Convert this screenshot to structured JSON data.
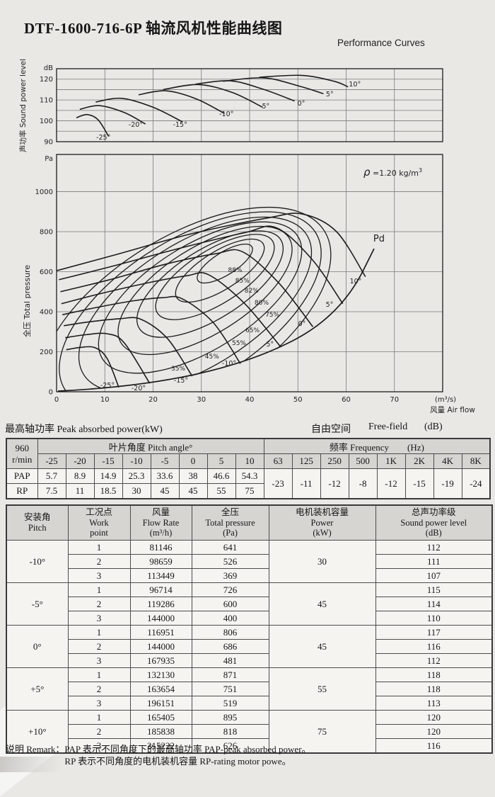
{
  "page": {
    "title": "DTF-1600-716-6P 轴流风机性能曲线图",
    "subtitle": "Performance Curves",
    "paper_color": "#e9e8e5",
    "line_color": "#1c1c1c",
    "grid_color": "#7a7a7a",
    "table_header_color": "#d6d5d1"
  },
  "chart_data": [
    {
      "type": "line",
      "title": "Sound power level curves",
      "ylabel": "声功率 Sound power level",
      "y_unit": "dB",
      "ylim": [
        90,
        125
      ],
      "y_ticks": [
        90,
        100,
        110,
        120
      ],
      "x_range": [
        0,
        80
      ],
      "x_grid_step": 10,
      "grid": "on",
      "series": [
        {
          "name": "-25°",
          "points": [
            [
              4.1,
              101.5
            ],
            [
              6.3,
              103
            ],
            [
              8.6,
              100.5
            ],
            [
              10.8,
              92.5
            ]
          ],
          "label_at": [
            9.7,
            91
          ]
        },
        {
          "name": "-20°",
          "points": [
            [
              4.8,
              105.5
            ],
            [
              8.8,
              107.3
            ],
            [
              14,
              104
            ],
            [
              18.4,
              98.5
            ]
          ],
          "label_at": [
            16.4,
            97.1
          ]
        },
        {
          "name": "-15°",
          "points": [
            [
              8.1,
              109
            ],
            [
              13.5,
              110.8
            ],
            [
              20,
              106.5
            ],
            [
              26.1,
              99.5
            ]
          ],
          "label_at": [
            25.6,
            97.1
          ]
        },
        {
          "name": "-10°",
          "points": [
            [
              17,
              112.5
            ],
            [
              22.7,
              114.4
            ],
            [
              29,
              110.5
            ],
            [
              34.8,
              103.5
            ]
          ],
          "label_at": [
            35.2,
            102.2
          ]
        },
        {
          "name": "-5°",
          "points": [
            [
              22.1,
              115
            ],
            [
              29.5,
              117.4
            ],
            [
              36.5,
              113.5
            ],
            [
              42.7,
              106.5
            ]
          ],
          "label_at": [
            43.1,
            106
          ]
        },
        {
          "name": "0°",
          "points": [
            [
              28.8,
              117.6
            ],
            [
              36,
              119.2
            ],
            [
              43,
              115
            ],
            [
              49.3,
              109.5
            ]
          ],
          "label_at": [
            50.7,
            107.3
          ]
        },
        {
          "name": "5°",
          "points": [
            [
              34.5,
              119
            ],
            [
              43,
              120.6
            ],
            [
              50.5,
              116.5
            ],
            [
              55.3,
              113
            ]
          ],
          "label_at": [
            56.6,
            111.7
          ]
        },
        {
          "name": "10°",
          "points": [
            [
              42,
              120.9
            ],
            [
              50.8,
              121.8
            ],
            [
              57.5,
              119
            ],
            [
              60.4,
              116.3
            ]
          ],
          "label_at": [
            61.8,
            116.5
          ]
        }
      ]
    },
    {
      "type": "line",
      "title": "Total pressure / air flow performance curves",
      "ylabel": "全压 Total pressure",
      "y_unit": "Pa",
      "xlabel": "风量 Air flow",
      "x_unit": "(m³/s)",
      "ylim": [
        0,
        1186
      ],
      "y_ticks": [
        0,
        200,
        400,
        600,
        800,
        1000
      ],
      "x_ticks": [
        0,
        10,
        20,
        30,
        40,
        50,
        60,
        70
      ],
      "grid": "on",
      "density_note": {
        "symbol": "ρ",
        "value": " =1.20 kg/m",
        "sup": "3"
      },
      "pd_curve": {
        "label": "Pd",
        "label_at": [
          66.8,
          750
        ]
      },
      "series": [
        {
          "name": "10°",
          "points": [
            [
              0,
              605
            ],
            [
              13,
              690
            ],
            [
              28,
              790
            ],
            [
              44,
              870
            ],
            [
              51,
              888
            ],
            [
              58,
              800
            ],
            [
              64,
              575
            ]
          ],
          "label_at": [
            61.98,
            541
          ]
        },
        {
          "name": "5°",
          "points": [
            [
              0.5,
              560
            ],
            [
              12,
              630
            ],
            [
              26,
              720
            ],
            [
              39,
              795
            ],
            [
              45.5,
              820
            ],
            [
              53,
              660
            ],
            [
              59.3,
              440
            ]
          ],
          "label_at": [
            56.56,
            425
          ]
        },
        {
          "name": "0°",
          "points": [
            [
              0.8,
              500
            ],
            [
              11,
              560
            ],
            [
              23,
              640
            ],
            [
              33,
              690
            ],
            [
              38.5,
              700
            ],
            [
              46,
              545
            ],
            [
              53.1,
              325
            ]
          ],
          "label_at": [
            50.84,
            329
          ]
        },
        {
          "name": "-5°",
          "points": [
            [
              1,
              440
            ],
            [
              9,
              490
            ],
            [
              19,
              545
            ],
            [
              27,
              580
            ],
            [
              31.5,
              585
            ],
            [
              39,
              440
            ],
            [
              46.4,
              225
            ]
          ],
          "label_at": [
            43.96,
            227
          ]
        },
        {
          "name": "-10°",
          "points": [
            [
              1.2,
              385
            ],
            [
              8,
              420
            ],
            [
              16,
              455
            ],
            [
              22,
              470
            ],
            [
              26,
              465
            ],
            [
              32.5,
              345
            ],
            [
              38.1,
              140
            ]
          ],
          "label_at": [
            35.75,
            131
          ]
        },
        {
          "name": "-15°",
          "points": [
            [
              1.5,
              330
            ],
            [
              7,
              350
            ],
            [
              13,
              365
            ],
            [
              17.5,
              362
            ],
            [
              23,
              265
            ],
            [
              28.1,
              78
            ]
          ],
          "label_at": [
            25.79,
            46
          ]
        },
        {
          "name": "-20°",
          "points": [
            [
              1.8,
              270
            ],
            [
              6,
              285
            ],
            [
              10.5,
              290
            ],
            [
              14,
              245
            ],
            [
              19.3,
              42
            ]
          ],
          "label_at": [
            17,
            7
          ]
        },
        {
          "name": "-25°",
          "points": [
            [
              2,
              210
            ],
            [
              5,
              222
            ],
            [
              8,
              220
            ],
            [
              10.5,
              165
            ],
            [
              12.9,
              22
            ]
          ],
          "label_at": [
            10.55,
            21
          ]
        }
      ],
      "efficiency_contours": {
        "values": [
          "88%",
          "85%",
          "82%",
          "80%",
          "75%",
          "65%",
          "55%",
          "45%",
          "35%"
        ],
        "labels_at": [
          [
            37,
            598
          ],
          [
            38.5,
            545
          ],
          [
            40.4,
            495
          ],
          [
            42.5,
            435
          ],
          [
            44.7,
            375
          ],
          [
            40.6,
            297
          ],
          [
            37.8,
            234
          ],
          [
            32.2,
            166
          ],
          [
            25.2,
            106
          ]
        ]
      }
    }
  ],
  "mid_labels": {
    "left": "最高轴功率 Peak absorbed power(kW)",
    "right_cn": "自由空间",
    "right_en": "Free-field",
    "right_unit": "(dB)"
  },
  "table1": {
    "speed_line1": "960",
    "speed_line2": "r/min",
    "pitch_header": "叶片角度 Pitch angle°",
    "freq_header": "频率 Frequency",
    "freq_unit": "(Hz)",
    "pitch_angles": [
      "-25",
      "-20",
      "-15",
      "-10",
      "-5",
      "0",
      "5",
      "10"
    ],
    "row_pap_label": "PAP",
    "row_pap": [
      "5.7",
      "8.9",
      "14.9",
      "25.3",
      "33.6",
      "38",
      "46.6",
      "54.3"
    ],
    "row_rp_label": "RP",
    "row_rp": [
      "7.5",
      "11",
      "18.5",
      "30",
      "45",
      "45",
      "55",
      "75"
    ],
    "freqs": [
      "63",
      "125",
      "250",
      "500",
      "1K",
      "2K",
      "4K",
      "8K"
    ],
    "freq_values": [
      "-23",
      "-11",
      "-12",
      "-8",
      "-12",
      "-15",
      "-19",
      "-24"
    ]
  },
  "table2": {
    "headers": [
      [
        "安装角",
        "Pitch"
      ],
      [
        "工况点",
        "Work",
        "point"
      ],
      [
        "风量",
        "Flow Rate",
        "(m³/h)"
      ],
      [
        "全压",
        "Total pressure",
        "(Pa)"
      ],
      [
        "电机装机容量",
        "Power",
        "(kW)"
      ],
      [
        "总声功率级",
        "Sound power level",
        "(dB)"
      ]
    ],
    "groups": [
      {
        "pitch": "-10°",
        "power": "30",
        "rows": [
          [
            "1",
            "81146",
            "641",
            "112"
          ],
          [
            "2",
            "98659",
            "526",
            "111"
          ],
          [
            "3",
            "113449",
            "369",
            "107"
          ]
        ]
      },
      {
        "pitch": "-5°",
        "power": "45",
        "rows": [
          [
            "1",
            "96714",
            "726",
            "115"
          ],
          [
            "2",
            "119286",
            "600",
            "114"
          ],
          [
            "3",
            "144000",
            "400",
            "110"
          ]
        ]
      },
      {
        "pitch": "0°",
        "power": "45",
        "rows": [
          [
            "1",
            "116951",
            "806",
            "117"
          ],
          [
            "2",
            "144000",
            "686",
            "116"
          ],
          [
            "3",
            "167935",
            "481",
            "112"
          ]
        ]
      },
      {
        "pitch": "+5°",
        "power": "55",
        "rows": [
          [
            "1",
            "132130",
            "871",
            "118"
          ],
          [
            "2",
            "163654",
            "751",
            "118"
          ],
          [
            "3",
            "196151",
            "519",
            "113"
          ]
        ]
      },
      {
        "pitch": "+10°",
        "power": "75",
        "rows": [
          [
            "1",
            "165405",
            "895",
            "120"
          ],
          [
            "2",
            "185838",
            "818",
            "120"
          ],
          [
            "3",
            "215222",
            "626",
            "116"
          ]
        ]
      }
    ]
  },
  "remark": {
    "prefix": "说明 Remark：",
    "line1": "PAP 表示不同角度下的最高轴功率 PAP-peak absorbed power。",
    "line2": "RP 表示不同角度的电机装机容量 RP-rating motor powe。"
  }
}
